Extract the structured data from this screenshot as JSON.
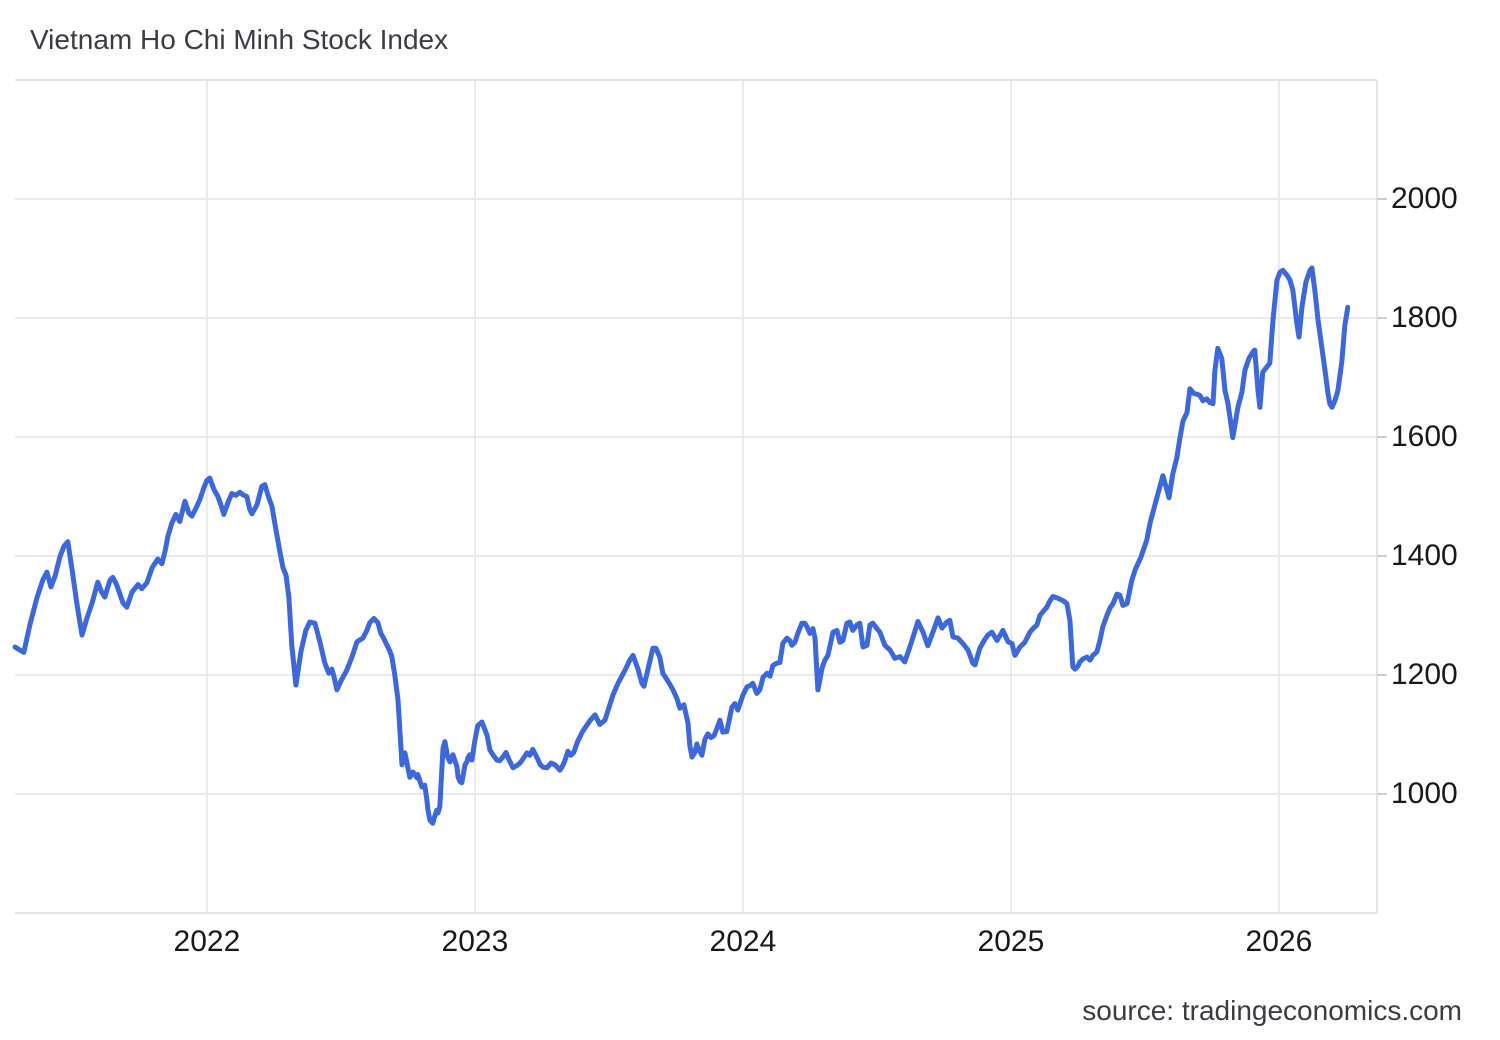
{
  "page": {
    "title": "Vietnam Ho Chi Minh Stock Index",
    "source": "source: tradingeconomics.com"
  },
  "chart_data": {
    "type": "line",
    "title": "Vietnam Ho Chi Minh Stock Index",
    "xlabel": "",
    "ylabel": "",
    "legend": "none",
    "grid": true,
    "line_color": "#3B68DF",
    "grid_color": "#e8eaed",
    "border_color": "#e0e3e7",
    "tick_color": "#c8ccd2",
    "x_range": [
      2021.284,
      2026.366
    ],
    "y_range": [
      800,
      2200
    ],
    "x_ticks": [
      {
        "label": "2022",
        "value": 2022
      },
      {
        "label": "2023",
        "value": 2023
      },
      {
        "label": "2024",
        "value": 2024
      },
      {
        "label": "2025",
        "value": 2025
      },
      {
        "label": "2026",
        "value": 2026
      }
    ],
    "y_ticks": [
      {
        "label": "2000",
        "value": 2000
      },
      {
        "label": "1800",
        "value": 1800
      },
      {
        "label": "1600",
        "value": 1600
      },
      {
        "label": "1400",
        "value": 1400
      },
      {
        "label": "1200",
        "value": 1200
      },
      {
        "label": "1000",
        "value": 1000
      }
    ],
    "points": [
      [
        2021.284,
        1247
      ],
      [
        2021.302,
        1242
      ],
      [
        2021.317,
        1238
      ],
      [
        2021.34,
        1285
      ],
      [
        2021.366,
        1330
      ],
      [
        2021.388,
        1360
      ],
      [
        2021.403,
        1373
      ],
      [
        2021.418,
        1348
      ],
      [
        2021.433,
        1365
      ],
      [
        2021.451,
        1398
      ],
      [
        2021.466,
        1416
      ],
      [
        2021.481,
        1424
      ],
      [
        2021.496,
        1380
      ],
      [
        2021.515,
        1320
      ],
      [
        2021.534,
        1267
      ],
      [
        2021.552,
        1295
      ],
      [
        2021.571,
        1320
      ],
      [
        2021.593,
        1356
      ],
      [
        2021.608,
        1339
      ],
      [
        2021.619,
        1331
      ],
      [
        2021.638,
        1359
      ],
      [
        2021.649,
        1364
      ],
      [
        2021.664,
        1351
      ],
      [
        2021.687,
        1321
      ],
      [
        2021.701,
        1314
      ],
      [
        2021.72,
        1339
      ],
      [
        2021.743,
        1352
      ],
      [
        2021.757,
        1345
      ],
      [
        2021.776,
        1355
      ],
      [
        2021.795,
        1380
      ],
      [
        2021.817,
        1395
      ],
      [
        2021.832,
        1387
      ],
      [
        2021.843,
        1406
      ],
      [
        2021.855,
        1434
      ],
      [
        2021.869,
        1455
      ],
      [
        2021.884,
        1470
      ],
      [
        2021.899,
        1458
      ],
      [
        2021.918,
        1492
      ],
      [
        2021.933,
        1472
      ],
      [
        2021.944,
        1467
      ],
      [
        2021.959,
        1480
      ],
      [
        2021.974,
        1495
      ],
      [
        2021.989,
        1515
      ],
      [
        2022.0,
        1527
      ],
      [
        2022.011,
        1531
      ],
      [
        2022.026,
        1512
      ],
      [
        2022.041,
        1500
      ],
      [
        2022.056,
        1481
      ],
      [
        2022.063,
        1470
      ],
      [
        2022.078,
        1489
      ],
      [
        2022.093,
        1505
      ],
      [
        2022.108,
        1502
      ],
      [
        2022.123,
        1507
      ],
      [
        2022.134,
        1503
      ],
      [
        2022.149,
        1500
      ],
      [
        2022.16,
        1478
      ],
      [
        2022.168,
        1471
      ],
      [
        2022.187,
        1486
      ],
      [
        2022.205,
        1517
      ],
      [
        2022.216,
        1520
      ],
      [
        2022.228,
        1502
      ],
      [
        2022.243,
        1483
      ],
      [
        2022.254,
        1453
      ],
      [
        2022.261,
        1436
      ],
      [
        2022.272,
        1408
      ],
      [
        2022.284,
        1380
      ],
      [
        2022.295,
        1368
      ],
      [
        2022.306,
        1330
      ],
      [
        2022.317,
        1250
      ],
      [
        2022.332,
        1183
      ],
      [
        2022.351,
        1240
      ],
      [
        2022.369,
        1275
      ],
      [
        2022.384,
        1289
      ],
      [
        2022.403,
        1287
      ],
      [
        2022.422,
        1255
      ],
      [
        2022.44,
        1220
      ],
      [
        2022.455,
        1203
      ],
      [
        2022.466,
        1210
      ],
      [
        2022.474,
        1198
      ],
      [
        2022.485,
        1175
      ],
      [
        2022.5,
        1190
      ],
      [
        2022.522,
        1208
      ],
      [
        2022.541,
        1230
      ],
      [
        2022.56,
        1256
      ],
      [
        2022.582,
        1262
      ],
      [
        2022.597,
        1275
      ],
      [
        2022.608,
        1288
      ],
      [
        2022.623,
        1295
      ],
      [
        2022.638,
        1288
      ],
      [
        2022.649,
        1270
      ],
      [
        2022.657,
        1264
      ],
      [
        2022.672,
        1250
      ],
      [
        2022.683,
        1240
      ],
      [
        2022.69,
        1231
      ],
      [
        2022.701,
        1200
      ],
      [
        2022.713,
        1158
      ],
      [
        2022.728,
        1049
      ],
      [
        2022.739,
        1069
      ],
      [
        2022.746,
        1054
      ],
      [
        2022.757,
        1028
      ],
      [
        2022.769,
        1037
      ],
      [
        2022.784,
        1027
      ],
      [
        2022.787,
        1033
      ],
      [
        2022.802,
        1012
      ],
      [
        2022.813,
        1015
      ],
      [
        2022.821,
        990
      ],
      [
        2022.825,
        973
      ],
      [
        2022.832,
        956
      ],
      [
        2022.843,
        951
      ],
      [
        2022.851,
        964
      ],
      [
        2022.858,
        973
      ],
      [
        2022.862,
        968
      ],
      [
        2022.869,
        978
      ],
      [
        2022.881,
        1077
      ],
      [
        2022.888,
        1088
      ],
      [
        2022.899,
        1061
      ],
      [
        2022.907,
        1054
      ],
      [
        2022.918,
        1066
      ],
      [
        2022.933,
        1046
      ],
      [
        2022.937,
        1029
      ],
      [
        2022.944,
        1021
      ],
      [
        2022.951,
        1019
      ],
      [
        2022.963,
        1049
      ],
      [
        2022.97,
        1054
      ],
      [
        2022.974,
        1061
      ],
      [
        2022.981,
        1066
      ],
      [
        2022.989,
        1057
      ],
      [
        2023.0,
        1090
      ],
      [
        2023.011,
        1115
      ],
      [
        2023.026,
        1121
      ],
      [
        2023.045,
        1099
      ],
      [
        2023.056,
        1074
      ],
      [
        2023.067,
        1066
      ],
      [
        2023.082,
        1057
      ],
      [
        2023.093,
        1056
      ],
      [
        2023.104,
        1062
      ],
      [
        2023.116,
        1070
      ],
      [
        2023.127,
        1058
      ],
      [
        2023.142,
        1044
      ],
      [
        2023.157,
        1048
      ],
      [
        2023.168,
        1052
      ],
      [
        2023.175,
        1056
      ],
      [
        2023.194,
        1069
      ],
      [
        2023.205,
        1065
      ],
      [
        2023.216,
        1075
      ],
      [
        2023.231,
        1062
      ],
      [
        2023.243,
        1050
      ],
      [
        2023.254,
        1045
      ],
      [
        2023.269,
        1044
      ],
      [
        2023.284,
        1052
      ],
      [
        2023.299,
        1049
      ],
      [
        2023.317,
        1040
      ],
      [
        2023.328,
        1048
      ],
      [
        2023.336,
        1056
      ],
      [
        2023.347,
        1072
      ],
      [
        2023.358,
        1065
      ],
      [
        2023.369,
        1070
      ],
      [
        2023.384,
        1089
      ],
      [
        2023.403,
        1106
      ],
      [
        2023.429,
        1123
      ],
      [
        2023.448,
        1133
      ],
      [
        2023.466,
        1117
      ],
      [
        2023.485,
        1124
      ],
      [
        2023.515,
        1166
      ],
      [
        2023.534,
        1186
      ],
      [
        2023.56,
        1208
      ],
      [
        2023.578,
        1225
      ],
      [
        2023.59,
        1233
      ],
      [
        2023.608,
        1211
      ],
      [
        2023.623,
        1186
      ],
      [
        2023.631,
        1181
      ],
      [
        2023.646,
        1210
      ],
      [
        2023.664,
        1245
      ],
      [
        2023.675,
        1245
      ],
      [
        2023.69,
        1230
      ],
      [
        2023.701,
        1203
      ],
      [
        2023.72,
        1190
      ],
      [
        2023.739,
        1175
      ],
      [
        2023.754,
        1160
      ],
      [
        2023.765,
        1144
      ],
      [
        2023.78,
        1150
      ],
      [
        2023.795,
        1119
      ],
      [
        2023.802,
        1082
      ],
      [
        2023.81,
        1062
      ],
      [
        2023.821,
        1070
      ],
      [
        2023.828,
        1084
      ],
      [
        2023.836,
        1075
      ],
      [
        2023.847,
        1065
      ],
      [
        2023.858,
        1091
      ],
      [
        2023.869,
        1101
      ],
      [
        2023.881,
        1095
      ],
      [
        2023.892,
        1098
      ],
      [
        2023.903,
        1110
      ],
      [
        2023.914,
        1124
      ],
      [
        2023.925,
        1104
      ],
      [
        2023.94,
        1105
      ],
      [
        2023.959,
        1146
      ],
      [
        2023.97,
        1152
      ],
      [
        2023.981,
        1141
      ],
      [
        2024.0,
        1166
      ],
      [
        2024.015,
        1180
      ],
      [
        2024.026,
        1182
      ],
      [
        2024.037,
        1186
      ],
      [
        2024.052,
        1169
      ],
      [
        2024.063,
        1175
      ],
      [
        2024.075,
        1196
      ],
      [
        2024.09,
        1203
      ],
      [
        2024.101,
        1198
      ],
      [
        2024.112,
        1216
      ],
      [
        2024.127,
        1220
      ],
      [
        2024.138,
        1221
      ],
      [
        2024.149,
        1253
      ],
      [
        2024.164,
        1262
      ],
      [
        2024.175,
        1258
      ],
      [
        2024.183,
        1250
      ],
      [
        2024.194,
        1255
      ],
      [
        2024.205,
        1270
      ],
      [
        2024.22,
        1287
      ],
      [
        2024.231,
        1287
      ],
      [
        2024.239,
        1281
      ],
      [
        2024.25,
        1270
      ],
      [
        2024.261,
        1278
      ],
      [
        2024.269,
        1262
      ],
      [
        2024.28,
        1175
      ],
      [
        2024.295,
        1211
      ],
      [
        2024.306,
        1225
      ],
      [
        2024.317,
        1233
      ],
      [
        2024.336,
        1272
      ],
      [
        2024.351,
        1275
      ],
      [
        2024.362,
        1255
      ],
      [
        2024.373,
        1258
      ],
      [
        2024.388,
        1287
      ],
      [
        2024.399,
        1289
      ],
      [
        2024.41,
        1275
      ],
      [
        2024.425,
        1284
      ],
      [
        2024.436,
        1287
      ],
      [
        2024.448,
        1247
      ],
      [
        2024.463,
        1250
      ],
      [
        2024.474,
        1284
      ],
      [
        2024.485,
        1287
      ],
      [
        2024.5,
        1278
      ],
      [
        2024.511,
        1272
      ],
      [
        2024.53,
        1250
      ],
      [
        2024.549,
        1242
      ],
      [
        2024.567,
        1228
      ],
      [
        2024.586,
        1231
      ],
      [
        2024.604,
        1222
      ],
      [
        2024.631,
        1258
      ],
      [
        2024.653,
        1290
      ],
      [
        2024.672,
        1272
      ],
      [
        2024.69,
        1249
      ],
      [
        2024.709,
        1272
      ],
      [
        2024.728,
        1296
      ],
      [
        2024.743,
        1279
      ],
      [
        2024.761,
        1289
      ],
      [
        2024.772,
        1292
      ],
      [
        2024.784,
        1264
      ],
      [
        2024.802,
        1262
      ],
      [
        2024.821,
        1253
      ],
      [
        2024.84,
        1242
      ],
      [
        2024.858,
        1220
      ],
      [
        2024.866,
        1217
      ],
      [
        2024.884,
        1245
      ],
      [
        2024.903,
        1260
      ],
      [
        2024.914,
        1267
      ],
      [
        2024.929,
        1272
      ],
      [
        2024.948,
        1258
      ],
      [
        2024.959,
        1266
      ],
      [
        2024.97,
        1275
      ],
      [
        2024.989,
        1256
      ],
      [
        2025.004,
        1253
      ],
      [
        2025.015,
        1233
      ],
      [
        2025.034,
        1247
      ],
      [
        2025.052,
        1255
      ],
      [
        2025.071,
        1272
      ],
      [
        2025.082,
        1278
      ],
      [
        2025.097,
        1284
      ],
      [
        2025.108,
        1300
      ],
      [
        2025.119,
        1306
      ],
      [
        2025.134,
        1314
      ],
      [
        2025.146,
        1325
      ],
      [
        2025.157,
        1332
      ],
      [
        2025.175,
        1329
      ],
      [
        2025.194,
        1325
      ],
      [
        2025.209,
        1320
      ],
      [
        2025.22,
        1292
      ],
      [
        2025.231,
        1214
      ],
      [
        2025.239,
        1210
      ],
      [
        2025.25,
        1215
      ],
      [
        2025.257,
        1222
      ],
      [
        2025.269,
        1227
      ],
      [
        2025.284,
        1230
      ],
      [
        2025.295,
        1225
      ],
      [
        2025.306,
        1233
      ],
      [
        2025.321,
        1239
      ],
      [
        2025.332,
        1258
      ],
      [
        2025.343,
        1281
      ],
      [
        2025.358,
        1300
      ],
      [
        2025.369,
        1312
      ],
      [
        2025.381,
        1320
      ],
      [
        2025.396,
        1336
      ],
      [
        2025.407,
        1334
      ],
      [
        2025.418,
        1317
      ],
      [
        2025.433,
        1320
      ],
      [
        2025.451,
        1359
      ],
      [
        2025.463,
        1376
      ],
      [
        2025.474,
        1387
      ],
      [
        2025.485,
        1398
      ],
      [
        2025.507,
        1427
      ],
      [
        2025.519,
        1455
      ],
      [
        2025.537,
        1485
      ],
      [
        2025.549,
        1505
      ],
      [
        2025.567,
        1535
      ],
      [
        2025.582,
        1511
      ],
      [
        2025.59,
        1498
      ],
      [
        2025.604,
        1538
      ],
      [
        2025.619,
        1565
      ],
      [
        2025.631,
        1599
      ],
      [
        2025.642,
        1627
      ],
      [
        2025.657,
        1641
      ],
      [
        2025.668,
        1681
      ],
      [
        2025.683,
        1673
      ],
      [
        2025.694,
        1672
      ],
      [
        2025.705,
        1670
      ],
      [
        2025.716,
        1661
      ],
      [
        2025.731,
        1664
      ],
      [
        2025.742,
        1658
      ],
      [
        2025.754,
        1656
      ],
      [
        2025.761,
        1712
      ],
      [
        2025.772,
        1749
      ],
      [
        2025.787,
        1732
      ],
      [
        2025.799,
        1678
      ],
      [
        2025.81,
        1656
      ],
      [
        2025.821,
        1622
      ],
      [
        2025.828,
        1599
      ],
      [
        2025.847,
        1650
      ],
      [
        2025.862,
        1675
      ],
      [
        2025.873,
        1712
      ],
      [
        2025.888,
        1732
      ],
      [
        2025.903,
        1743
      ],
      [
        2025.91,
        1746
      ],
      [
        2025.922,
        1678
      ],
      [
        2025.929,
        1650
      ],
      [
        2025.94,
        1709
      ],
      [
        2025.955,
        1718
      ],
      [
        2025.966,
        1724
      ],
      [
        2025.978,
        1797
      ],
      [
        2025.993,
        1864
      ],
      [
        2026.004,
        1877
      ],
      [
        2026.015,
        1880
      ],
      [
        2026.03,
        1872
      ],
      [
        2026.041,
        1864
      ],
      [
        2026.052,
        1847
      ],
      [
        2026.067,
        1790
      ],
      [
        2026.075,
        1768
      ],
      [
        2026.086,
        1819
      ],
      [
        2026.101,
        1861
      ],
      [
        2026.116,
        1880
      ],
      [
        2026.123,
        1884
      ],
      [
        2026.134,
        1847
      ],
      [
        2026.146,
        1797
      ],
      [
        2026.16,
        1751
      ],
      [
        2026.172,
        1712
      ],
      [
        2026.183,
        1673
      ],
      [
        2026.19,
        1656
      ],
      [
        2026.198,
        1650
      ],
      [
        2026.209,
        1661
      ],
      [
        2026.22,
        1678
      ],
      [
        2026.235,
        1728
      ],
      [
        2026.246,
        1787
      ],
      [
        2026.257,
        1818
      ]
    ]
  }
}
